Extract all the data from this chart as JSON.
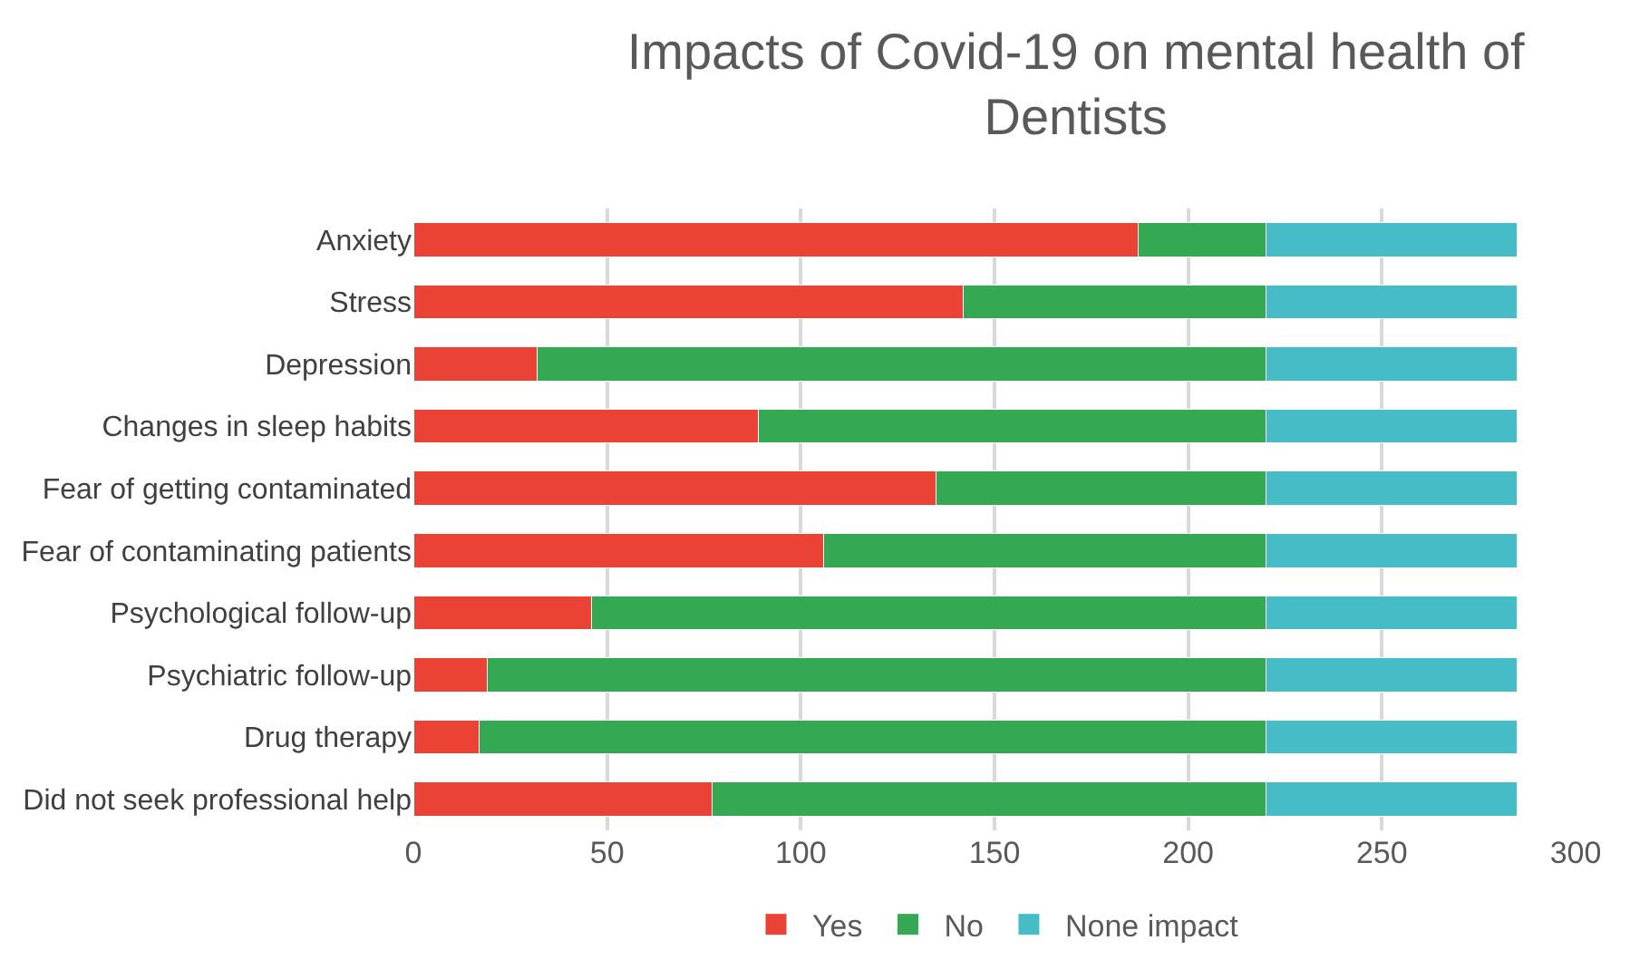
{
  "chart_data": {
    "type": "bar",
    "orientation": "horizontal",
    "stacked": true,
    "title": "Impacts of Covid-19 on mental health of Dentists",
    "categories": [
      "Anxiety",
      "Stress",
      "Depression",
      "Changes in sleep habits",
      "Fear of getting contaminated",
      "Fear of contaminating patients",
      "Psychological follow-up",
      "Psychiatric follow-up",
      "Drug therapy",
      "Did not seek professional help"
    ],
    "series": [
      {
        "name": "Yes",
        "color": "#ea4335",
        "values": [
          187,
          142,
          32,
          89,
          135,
          106,
          46,
          19,
          17,
          77
        ]
      },
      {
        "name": "No",
        "color": "#34a853",
        "values": [
          33,
          78,
          188,
          131,
          85,
          114,
          174,
          201,
          203,
          143
        ]
      },
      {
        "name": "None impact",
        "color": "#46bdc6",
        "values": [
          65,
          65,
          65,
          65,
          65,
          65,
          65,
          65,
          65,
          65
        ]
      }
    ],
    "xlim": [
      0,
      300
    ],
    "xticks": [
      0,
      50,
      100,
      150,
      200,
      250,
      300
    ],
    "grid": "x",
    "legend": "bottom"
  }
}
